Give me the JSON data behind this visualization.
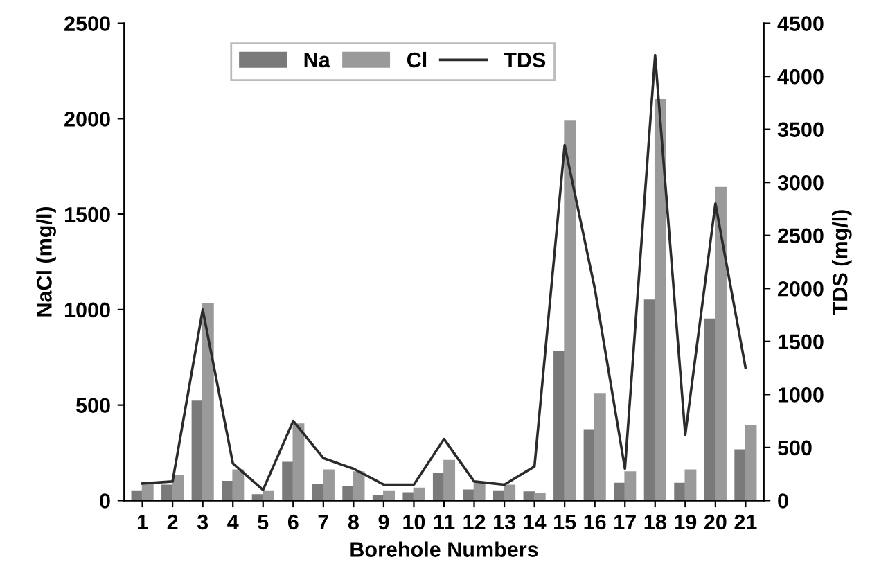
{
  "chart_data": {
    "type": "bar",
    "xlabel": "Borehole Numbers",
    "ylabel": "NaCl (mg/l)",
    "y2label": "TDS (mg/l)",
    "categories": [
      "1",
      "2",
      "3",
      "4",
      "5",
      "6",
      "7",
      "8",
      "9",
      "10",
      "11",
      "12",
      "13",
      "14",
      "15",
      "16",
      "17",
      "18",
      "19",
      "20",
      "21"
    ],
    "series": [
      {
        "name": "Na",
        "color": "#7a7a7a",
        "values": [
          50,
          80,
          520,
          100,
          30,
          200,
          85,
          75,
          25,
          40,
          140,
          55,
          50,
          45,
          780,
          370,
          90,
          1050,
          90,
          950,
          265
        ]
      },
      {
        "name": "Cl",
        "color": "#9a9a9a",
        "values": [
          90,
          130,
          1030,
          160,
          50,
          400,
          160,
          150,
          50,
          65,
          210,
          90,
          80,
          35,
          1990,
          560,
          150,
          2100,
          160,
          1640,
          390
        ]
      },
      {
        "name": "TDS",
        "type": "line",
        "axis": "y2",
        "color": "#2b2b2b",
        "values": [
          160,
          180,
          1800,
          350,
          100,
          750,
          400,
          300,
          150,
          150,
          580,
          180,
          150,
          320,
          3350,
          2000,
          300,
          4200,
          620,
          2800,
          1250
        ]
      }
    ],
    "ylim": [
      0,
      2500
    ],
    "yticks": [
      0,
      500,
      1000,
      1500,
      2000,
      2500
    ],
    "y2lim": [
      0,
      4500
    ],
    "y2ticks": [
      0,
      500,
      1000,
      1500,
      2000,
      2500,
      3000,
      3500,
      4000,
      4500
    ],
    "legend": "top",
    "grid": false,
    "marker": "none",
    "line_style": "solid"
  }
}
